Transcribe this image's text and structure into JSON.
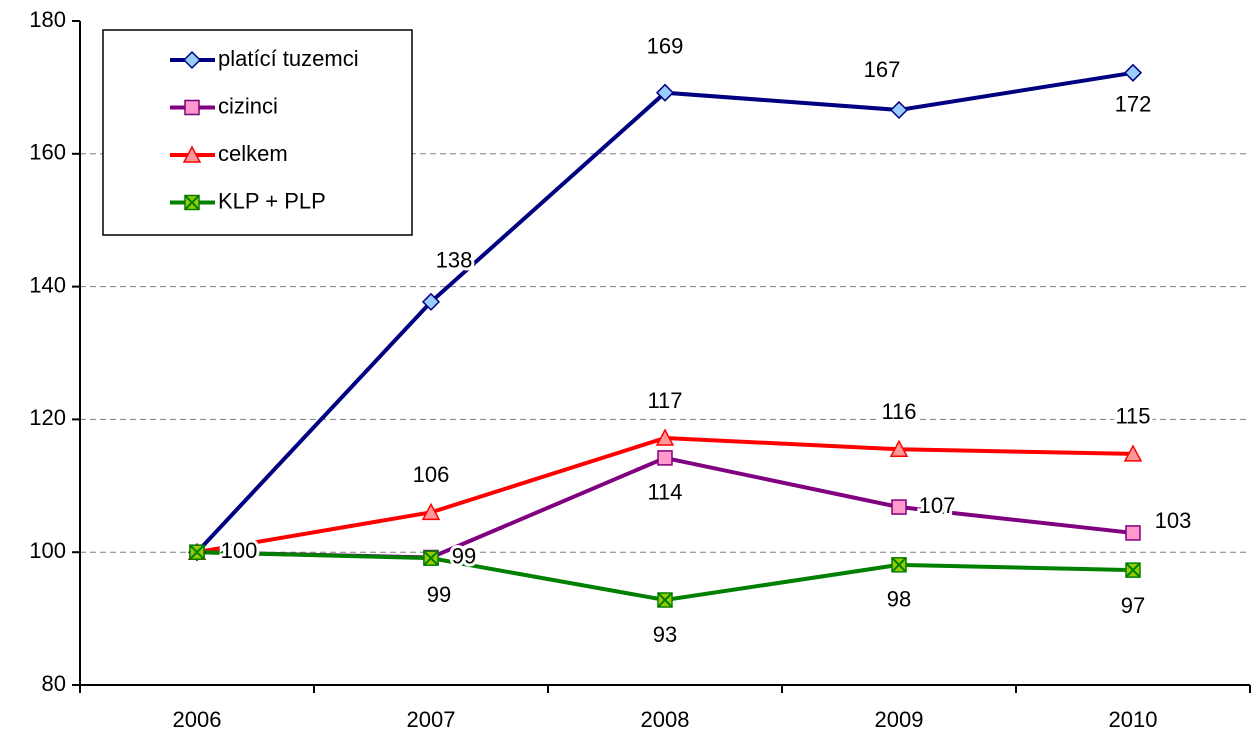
{
  "chart_data": {
    "type": "line",
    "categories": [
      "2006",
      "2007",
      "2008",
      "2009",
      "2010"
    ],
    "ylim": [
      80,
      180
    ],
    "yticks": [
      80,
      100,
      120,
      140,
      160,
      180
    ],
    "grid": true,
    "legend": "upper left",
    "series": [
      {
        "name": "platící tuzemci",
        "color": "#000080",
        "marker": "diamond",
        "marker_color": "#99ccff",
        "values": [
          100,
          137.7,
          169.2,
          166.6,
          172.2
        ],
        "value_labels": [
          "100",
          "138",
          "169",
          "167",
          "172"
        ]
      },
      {
        "name": "cizinci",
        "color": "#800080",
        "marker": "square",
        "marker_color": "#ff99cc",
        "values": [
          100,
          99.2,
          114.2,
          106.8,
          102.9
        ],
        "value_labels": [
          null,
          "99",
          "114",
          "107",
          "103"
        ]
      },
      {
        "name": "celkem",
        "color": "#ff0000",
        "marker": "triangle",
        "marker_color": "#ff9999",
        "values": [
          100,
          106.0,
          117.2,
          115.5,
          114.8
        ],
        "value_labels": [
          null,
          "106",
          "117",
          "116",
          "115"
        ]
      },
      {
        "name": "KLP + PLP",
        "color": "#008000",
        "marker": "xsquare",
        "marker_color": "#99cc00",
        "values": [
          100,
          99.1,
          92.8,
          98.1,
          97.3
        ],
        "value_labels": [
          null,
          "99",
          "93",
          "98",
          "97"
        ]
      }
    ]
  }
}
